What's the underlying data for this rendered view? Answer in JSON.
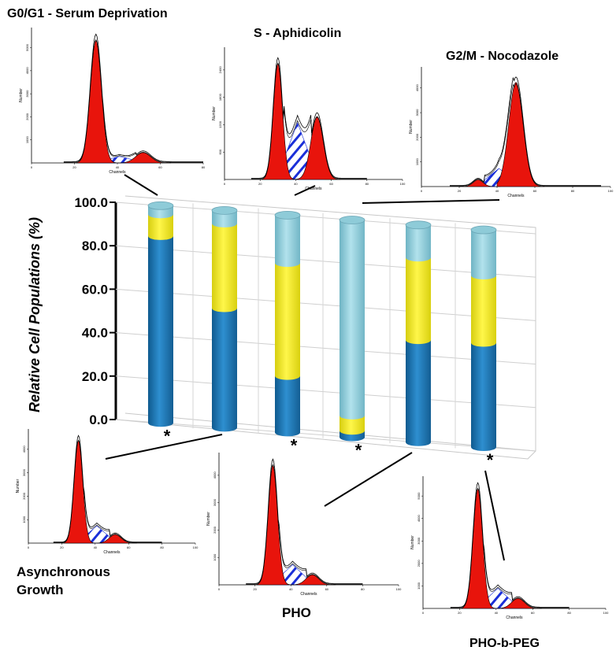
{
  "chart_data": [
    {
      "type": "bar",
      "variant": "3d-stacked-cylinder",
      "ylabel": "Relative Cell Populations (%)",
      "ylim": [
        0,
        100
      ],
      "yticks": [
        "100.0",
        "80.0",
        "60.0",
        "40.0",
        "20.0",
        "0.0"
      ],
      "grid": true,
      "legend": "none",
      "categories": [
        "G0/G1 - Serum Deprivation",
        "Asynchronous Growth",
        "S - Aphidicolin",
        "G2/M - Nocodazole",
        "PHO",
        "PHO-b-PEG"
      ],
      "series": [
        {
          "name": "",
          "color": "#1f77b8",
          "values": [
            86,
            55,
            26,
            3,
            47,
            48
          ]
        },
        {
          "name": "",
          "color": "#f2ea1c",
          "values": [
            10,
            39,
            52,
            7,
            38,
            31
          ]
        },
        {
          "name": "",
          "color": "#8ecbd8",
          "values": [
            4,
            6,
            22,
            90,
            15,
            21
          ]
        }
      ],
      "significance_markers": [
        "*",
        "",
        "*",
        "*",
        "",
        "*"
      ]
    },
    {
      "type": "area",
      "variant": "flow-cytometry-histogram",
      "title": "G0/G1  -  Serum Deprivation",
      "xlabel": "Channels",
      "ylabel": "Number",
      "x_ticks": [
        "0",
        "20",
        "40",
        "60",
        "80"
      ],
      "y_ticks": [
        "1000",
        "2000",
        "3000",
        "4000",
        "5000"
      ],
      "peak_channel": 30
    },
    {
      "type": "area",
      "variant": "flow-cytometry-histogram",
      "title": "S -  Aphidicolin",
      "xlabel": "Channels",
      "ylabel": "Number",
      "x_ticks": [
        "0",
        "20",
        "40",
        "60",
        "80",
        "100"
      ],
      "y_ticks": [
        "600",
        "1200",
        "1800",
        "2400"
      ],
      "peak_channel": 30
    },
    {
      "type": "area",
      "variant": "flow-cytometry-histogram",
      "title": "G2/M  -  Nocodazole",
      "xlabel": "Channels",
      "ylabel": "Number",
      "x_ticks": [
        "0",
        "20",
        "40",
        "60",
        "80",
        "100"
      ],
      "y_ticks": [
        "1000",
        "2000",
        "3000",
        "4000"
      ],
      "peak_channel": 50
    },
    {
      "type": "area",
      "variant": "flow-cytometry-histogram",
      "title": "Asynchronous\nGrowth",
      "xlabel": "Channels",
      "ylabel": "Number",
      "x_ticks": [
        "0",
        "20",
        "40",
        "60",
        "80",
        "100"
      ],
      "y_ticks": [
        "1000",
        "2000",
        "3000",
        "4000"
      ],
      "peak_channel": 30
    },
    {
      "type": "area",
      "variant": "flow-cytometry-histogram",
      "title": "PHO",
      "xlabel": "Channels",
      "ylabel": "Number",
      "x_ticks": [
        "0",
        "20",
        "40",
        "60",
        "80",
        "100"
      ],
      "y_ticks": [
        "1000",
        "2000",
        "3000",
        "4000"
      ],
      "peak_channel": 30
    },
    {
      "type": "area",
      "variant": "flow-cytometry-histogram",
      "title": "PHO-b-PEG",
      "xlabel": "Channels",
      "ylabel": "Number",
      "x_ticks": [
        "0",
        "20",
        "40",
        "60",
        "80",
        "100"
      ],
      "y_ticks": [
        "1000",
        "2000",
        "3000",
        "4000",
        "5000"
      ],
      "peak_channel": 30
    }
  ],
  "labels": {
    "g0g1": "G0/G1  -  Serum Deprivation",
    "s_phase": "S -  Aphidicolin",
    "g2m": "G2/M  -  Nocodazole",
    "async_line1": "Asynchronous",
    "async_line2": "Growth",
    "pho": "PHO",
    "phobpeg": "PHO-b-PEG"
  },
  "colors": {
    "g1_fill": "#e8140c",
    "s_hatch": "#1a2fd8",
    "phase_g1": "#1f77b8",
    "phase_s": "#f2ea1c",
    "phase_g2m": "#8ecbd8"
  }
}
